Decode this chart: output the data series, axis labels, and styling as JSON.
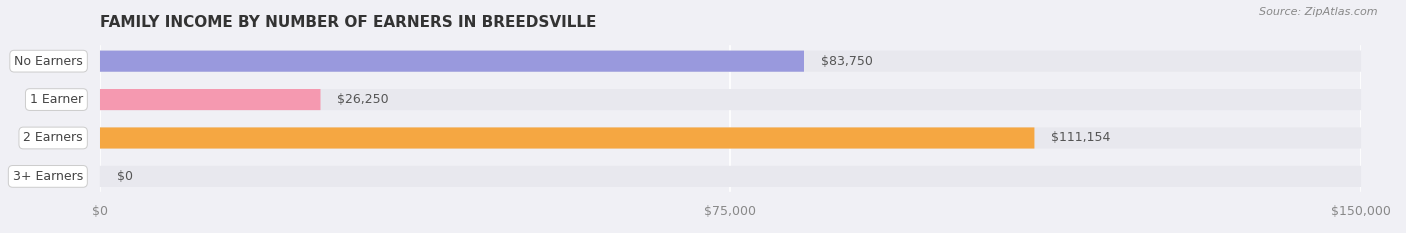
{
  "title": "FAMILY INCOME BY NUMBER OF EARNERS IN BREEDSVILLE",
  "source": "Source: ZipAtlas.com",
  "categories": [
    "No Earners",
    "1 Earner",
    "2 Earners",
    "3+ Earners"
  ],
  "values": [
    83750,
    26250,
    111154,
    0
  ],
  "bar_colors": [
    "#9999dd",
    "#f599b0",
    "#f5a742",
    "#f5a0a0"
  ],
  "label_colors": [
    "#888888",
    "#888888",
    "#ffffff",
    "#888888"
  ],
  "background_color": "#f0f0f5",
  "bar_bg_color": "#e8e8ee",
  "xlim": [
    0,
    150000
  ],
  "xticks": [
    0,
    75000,
    150000
  ],
  "xtick_labels": [
    "$0",
    "$75,000",
    "$150,000"
  ],
  "value_labels": [
    "$83,750",
    "$26,250",
    "$111,154",
    "$0"
  ],
  "title_fontsize": 11,
  "bar_height": 0.55,
  "label_fontsize": 9,
  "source_fontsize": 8
}
